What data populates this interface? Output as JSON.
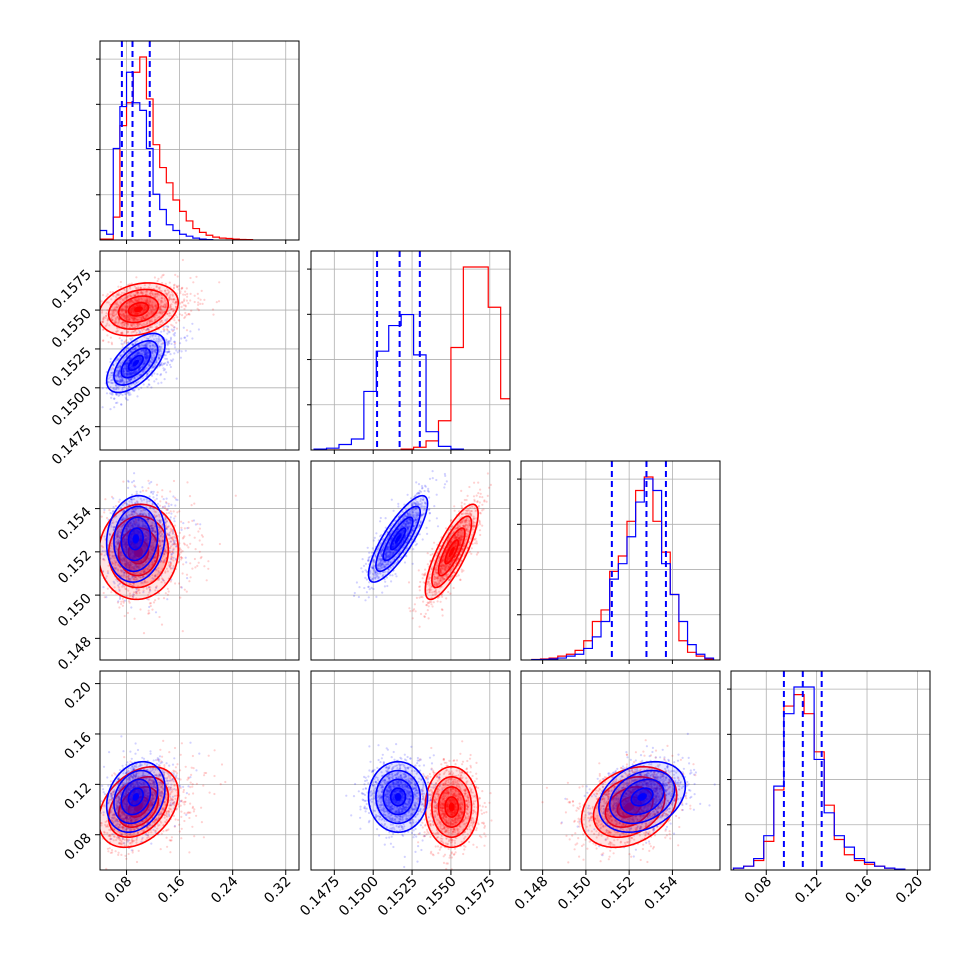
{
  "chart_data": {
    "type": "corner",
    "title": "",
    "colors": {
      "red": "#ff0000",
      "blue": "#0000ff",
      "grid": "#b0b0b0"
    },
    "series": [
      {
        "color": "red"
      },
      {
        "color": "blue"
      }
    ],
    "parameters": [
      {
        "range": [
          0.04,
          0.34
        ],
        "ticks": [
          0.08,
          0.16,
          0.24,
          0.32
        ],
        "tick_labels": [
          "0.08",
          "0.16",
          "0.24",
          "0.32"
        ]
      },
      {
        "range": [
          0.146,
          0.1588
        ],
        "ticks": [
          0.1475,
          0.15,
          0.1525,
          0.155,
          0.1575
        ],
        "tick_labels": [
          "0.1475",
          "0.1500",
          "0.1525",
          "0.1550",
          "0.1575"
        ]
      },
      {
        "range": [
          0.147,
          0.1562
        ],
        "ticks": [
          0.148,
          0.15,
          0.152,
          0.154
        ],
        "tick_labels": [
          "0.148",
          "0.150",
          "0.152",
          "0.154"
        ]
      },
      {
        "range": [
          0.052,
          0.21
        ],
        "ticks": [
          0.08,
          0.12,
          0.16,
          0.2
        ],
        "tick_labels": [
          "0.08",
          "0.12",
          "0.16",
          "0.20"
        ]
      }
    ],
    "quantiles_blue": [
      [
        0.073,
        0.089,
        0.115
      ],
      [
        0.15025,
        0.1517,
        0.153
      ],
      [
        0.1512,
        0.1528,
        0.1537
      ],
      [
        0.094,
        0.109,
        0.124
      ]
    ],
    "marginals": {
      "red": [
        {
          "centers": [
            0.045,
            0.055,
            0.065,
            0.075,
            0.085,
            0.095,
            0.105,
            0.115,
            0.125,
            0.135,
            0.145,
            0.155,
            0.165,
            0.175,
            0.185,
            0.195,
            0.205,
            0.215,
            0.225,
            0.235,
            0.245,
            0.255,
            0.265
          ],
          "values": [
            0.5,
            0.5,
            12,
            60,
            72,
            88,
            96,
            74,
            50,
            38,
            30,
            21,
            15,
            10,
            6,
            4,
            2.5,
            1.5,
            1,
            0.8,
            0.5,
            0.3,
            0.2
          ]
        },
        {
          "centers": [
            0.1466,
            0.1474,
            0.1482,
            0.149,
            0.1498,
            0.1506,
            0.1514,
            0.1522,
            0.153,
            0.1538,
            0.1546,
            0.1554,
            0.1562,
            0.157,
            0.1578,
            0.1586
          ],
          "values": [
            0,
            0,
            0,
            0,
            0,
            0,
            0,
            0.5,
            1.5,
            5,
            16,
            56,
            100,
            100,
            78,
            28
          ]
        },
        {
          "centers": [
            0.1477,
            0.1481,
            0.1485,
            0.1489,
            0.1493,
            0.1497,
            0.1501,
            0.1505,
            0.1509,
            0.1513,
            0.1517,
            0.1521,
            0.1525,
            0.1529,
            0.1533,
            0.1537,
            0.1541,
            0.1545,
            0.1549,
            0.1553,
            0.1557
          ],
          "values": [
            0.3,
            0.5,
            1,
            2,
            3,
            5,
            10,
            20,
            26,
            46,
            54,
            72,
            88,
            95,
            72,
            56,
            34,
            10,
            4,
            2,
            0.5
          ]
        },
        {
          "centers": [
            0.058,
            0.066,
            0.074,
            0.082,
            0.09,
            0.098,
            0.106,
            0.114,
            0.122,
            0.13,
            0.138,
            0.146,
            0.154,
            0.162,
            0.17,
            0.178,
            0.186
          ],
          "values": [
            1,
            2,
            5,
            15,
            42,
            86,
            92,
            82,
            62,
            34,
            16,
            8,
            5,
            3,
            2,
            1,
            0.5
          ]
        }
      ],
      "blue": [
        {
          "centers": [
            0.045,
            0.055,
            0.065,
            0.075,
            0.085,
            0.095,
            0.105,
            0.115,
            0.125,
            0.135,
            0.145,
            0.155,
            0.165,
            0.175,
            0.185,
            0.195,
            0.205
          ],
          "values": [
            5,
            3,
            48,
            70,
            88,
            72,
            68,
            48,
            24,
            16,
            8,
            5,
            3,
            2,
            1,
            0.5,
            0.2
          ]
        },
        {
          "centers": [
            0.1466,
            0.1474,
            0.1482,
            0.149,
            0.1498,
            0.1506,
            0.1514,
            0.1522,
            0.153,
            0.1538,
            0.1546,
            0.1554
          ],
          "values": [
            0.5,
            1,
            3,
            6,
            32,
            54,
            68,
            74,
            52,
            10,
            2,
            0.5
          ]
        },
        {
          "centers": [
            0.1477,
            0.1481,
            0.1485,
            0.1489,
            0.1493,
            0.1497,
            0.1501,
            0.1505,
            0.1509,
            0.1513,
            0.1517,
            0.1521,
            0.1525,
            0.1529,
            0.1533,
            0.1537,
            0.1541,
            0.1545,
            0.1549,
            0.1553,
            0.1557
          ],
          "values": [
            0.2,
            0.3,
            0.5,
            1,
            2,
            3,
            6,
            12,
            20,
            42,
            50,
            64,
            82,
            94,
            88,
            50,
            34,
            20,
            8,
            3,
            1
          ]
        },
        {
          "centers": [
            0.058,
            0.066,
            0.074,
            0.082,
            0.09,
            0.098,
            0.106,
            0.114,
            0.122,
            0.13,
            0.138,
            0.146,
            0.154,
            0.162,
            0.17,
            0.178,
            0.186
          ],
          "values": [
            1,
            2,
            6,
            18,
            44,
            82,
            96,
            96,
            58,
            30,
            18,
            12,
            6,
            4,
            2,
            1,
            0.5
          ]
        }
      ]
    },
    "joint": {
      "red": {
        "p0": 0.098,
        "p1": 0.15505,
        "p2": 0.152,
        "p3": 0.102,
        "sigma": [
          0.03,
          0.00085,
          0.0011,
          0.016
        ],
        "corr": {
          "0-1": 0.25,
          "0-2": 0.05,
          "0-3": 0.35,
          "1-2": 0.8,
          "1-3": 0.0,
          "2-3": 0.3
        }
      },
      "blue": {
        "p0": 0.094,
        "p1": 0.1516,
        "p2": 0.1526,
        "p3": 0.11,
        "sigma": [
          0.022,
          0.00095,
          0.001,
          0.014
        ],
        "corr": {
          "0-1": 0.6,
          "0-2": 0.1,
          "0-3": 0.25,
          "1-2": 0.82,
          "1-3": 0.0,
          "2-3": 0.3
        }
      }
    }
  }
}
